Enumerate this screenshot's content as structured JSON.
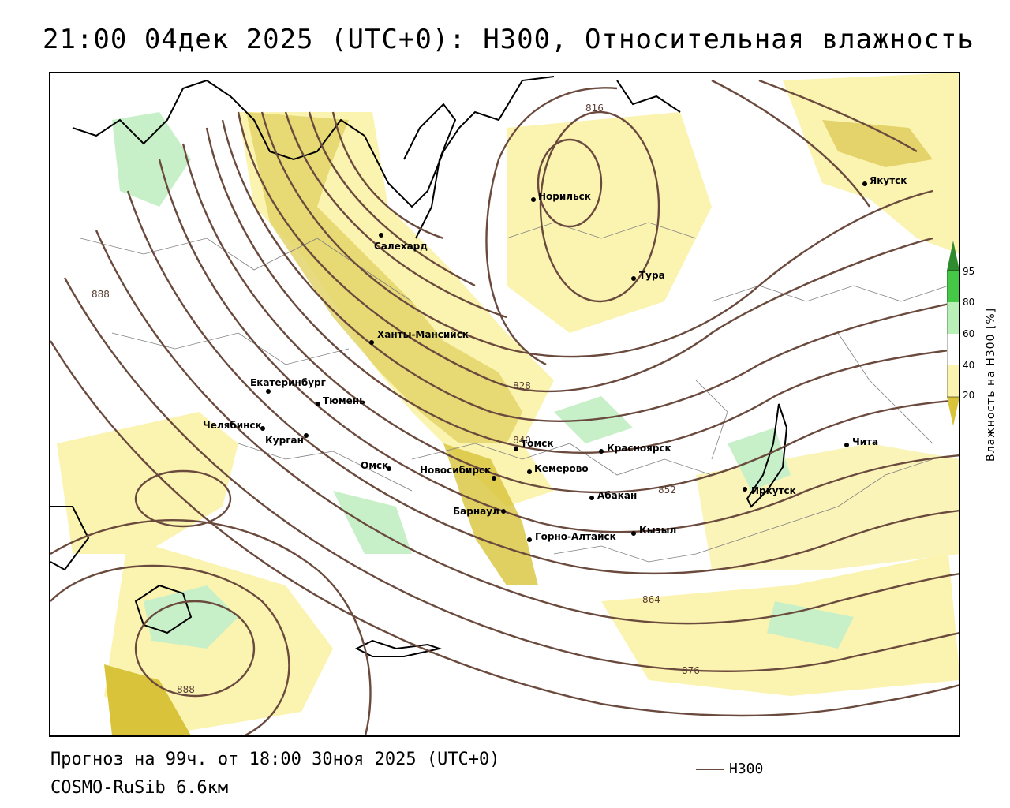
{
  "header": {
    "title": "21:00 04дек 2025 (UTC+0): H300, Относительная влажность"
  },
  "footer": {
    "forecast": "Прогноз на 99ч. от 18:00 30ноя 2025 (UTC+0)",
    "model": "COSMO-RuSib 6.6км",
    "legend_label": "H300"
  },
  "colorbar": {
    "title": "Влажность на H300 [%]",
    "ticks": [
      "95",
      "80",
      "60",
      "40",
      "20"
    ],
    "colors": [
      "#2e8b2e",
      "#45c845",
      "#b8f0b8",
      "#ffffff",
      "#fbf3b0",
      "#d8c33a"
    ]
  },
  "colors": {
    "contour": "#6b4a3e",
    "dry_yellow": "#fbf3b0",
    "dark_yellow": "#e3d36a",
    "green": "#c8f0c8"
  },
  "contours": {
    "labels": [
      "816",
      "828",
      "840",
      "852",
      "864",
      "876",
      "888",
      "888"
    ]
  },
  "cities": [
    {
      "name": "Якутск"
    },
    {
      "name": "Норильск"
    },
    {
      "name": "Салехард"
    },
    {
      "name": "Тура"
    },
    {
      "name": "Ханты-Мансийск"
    },
    {
      "name": "Екатеринбург"
    },
    {
      "name": "Тюмень"
    },
    {
      "name": "Челябинск"
    },
    {
      "name": "Курган"
    },
    {
      "name": "Омск"
    },
    {
      "name": "Томск"
    },
    {
      "name": "Красноярск"
    },
    {
      "name": "Кемерово"
    },
    {
      "name": "Новосибирск"
    },
    {
      "name": "Абакан"
    },
    {
      "name": "Иркутск"
    },
    {
      "name": "Чита"
    },
    {
      "name": "Барнаул"
    },
    {
      "name": "Горно-Алтайск"
    },
    {
      "name": "Кызыл"
    }
  ]
}
